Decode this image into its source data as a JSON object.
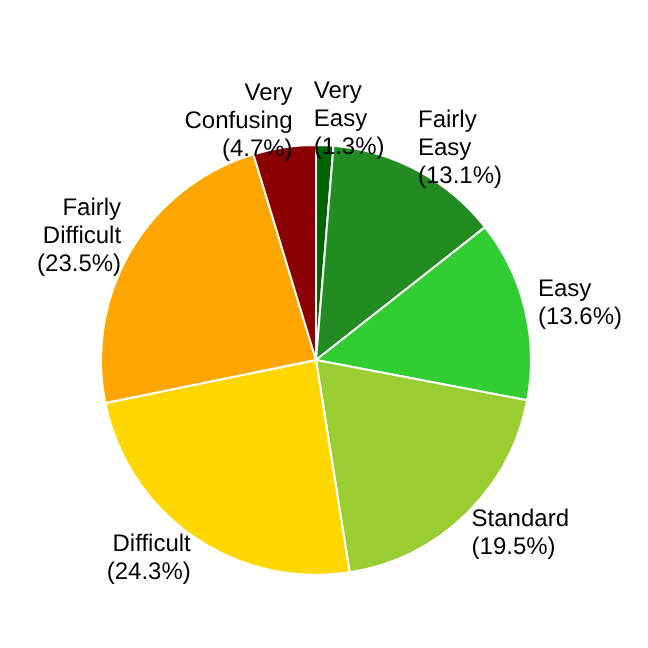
{
  "chart_data": {
    "type": "pie",
    "categories": [
      "Very Easy",
      "Fairly Easy",
      "Easy",
      "Standard",
      "Difficult",
      "Fairly Difficult",
      "Very Confusing"
    ],
    "values": [
      1.3,
      13.1,
      13.6,
      19.5,
      24.3,
      23.5,
      4.7
    ],
    "value_labels": [
      "(1.3%)",
      "(13.1%)",
      "(13.6%)",
      "(19.5%)",
      "(24.3%)",
      "(23.5%)",
      "(4.7%)"
    ],
    "colors": [
      "#006400",
      "#228b22",
      "#32cd32",
      "#9acd32",
      "#ffd700",
      "#ffa500",
      "#8b0000"
    ],
    "legend": false
  }
}
